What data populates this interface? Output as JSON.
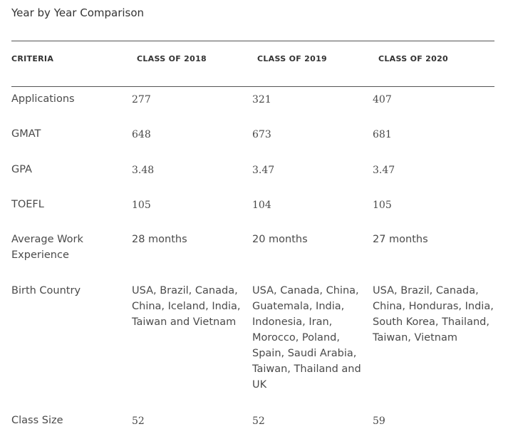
{
  "title": "Year by Year Comparison",
  "headers": [
    "CRITERIA",
    "CLASS OF 2018",
    "CLASS OF 2019",
    "CLASS OF 2020"
  ],
  "rows": [
    {
      "label": "Applications",
      "values": [
        "277",
        "321",
        "407"
      ]
    },
    {
      "label": "GMAT",
      "values": [
        "648",
        "673",
        "681"
      ]
    },
    {
      "label": "GPA",
      "values": [
        "3.48",
        "3.47",
        "3.47"
      ]
    },
    {
      "label": "TOEFL",
      "values": [
        "105",
        "104",
        "105"
      ]
    },
    {
      "label": "Average Work Experience",
      "values": [
        "28 months",
        "20 months",
        "27 months"
      ]
    },
    {
      "label": "Birth Country",
      "values": [
        "USA, Brazil, Canada, China, Iceland, India, Taiwan and Vietnam",
        "USA, Canada, China, Guatemala, India, Indonesia, Iran, Morocco, Poland, Spain, Saudi Arabia, Taiwan, Thailand and UK",
        "USA, Brazil, Canada, China, Honduras, India, South Korea, Thailand, Taiwan, Vietnam"
      ]
    },
    {
      "label": "Class Size",
      "values": [
        "52",
        "52",
        "59"
      ]
    }
  ]
}
